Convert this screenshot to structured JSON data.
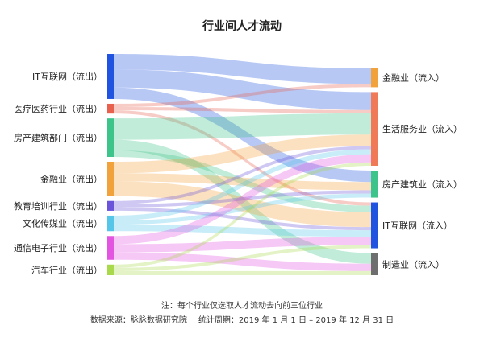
{
  "chart_data": {
    "type": "sankey",
    "title": "行业间人才流动",
    "sources": [
      {
        "name": "IT互联网（流出）",
        "color": "#1f53e0"
      },
      {
        "name": "医疗医药行业（流出）",
        "color": "#e8614d"
      },
      {
        "name": "房产建筑部门（流出）",
        "color": "#3dc48a"
      },
      {
        "name": "金融业（流出）",
        "color": "#f2a23a"
      },
      {
        "name": "教育培训行业（流出）",
        "color": "#6b54d9"
      },
      {
        "name": "文化传媒业（流出）",
        "color": "#55c6e8"
      },
      {
        "name": "通信电子行业（流出）",
        "color": "#e355e0"
      },
      {
        "name": "汽车行业（流出）",
        "color": "#a8d94a"
      }
    ],
    "targets": [
      {
        "name": "金融业（流入）",
        "color": "#f2a23a"
      },
      {
        "name": "生活服务业（流入）",
        "color": "#f07a57"
      },
      {
        "name": "房产建筑业（流入）",
        "color": "#3dc48a"
      },
      {
        "name": "IT互联网（流入）",
        "color": "#1f53e0"
      },
      {
        "name": "制造业（流入）",
        "color": "#6e6e6e"
      }
    ],
    "links": [
      {
        "source": 0,
        "target": 0,
        "value": 19
      },
      {
        "source": 0,
        "target": 1,
        "value": 22
      },
      {
        "source": 0,
        "target": 2,
        "value": 14
      },
      {
        "source": 1,
        "target": 0,
        "value": 4
      },
      {
        "source": 1,
        "target": 1,
        "value": 4
      },
      {
        "source": 1,
        "target": 3,
        "value": 4
      },
      {
        "source": 2,
        "target": 1,
        "value": 26
      },
      {
        "source": 2,
        "target": 4,
        "value": 13
      },
      {
        "source": 2,
        "target": 3,
        "value": 8
      },
      {
        "source": 3,
        "target": 1,
        "value": 14
      },
      {
        "source": 3,
        "target": 2,
        "value": 10
      },
      {
        "source": 3,
        "target": 3,
        "value": 18
      },
      {
        "source": 4,
        "target": 1,
        "value": 4
      },
      {
        "source": 4,
        "target": 2,
        "value": 4
      },
      {
        "source": 4,
        "target": 3,
        "value": 4
      },
      {
        "source": 5,
        "target": 1,
        "value": 6
      },
      {
        "source": 5,
        "target": 2,
        "value": 5
      },
      {
        "source": 5,
        "target": 3,
        "value": 8
      },
      {
        "source": 6,
        "target": 1,
        "value": 10
      },
      {
        "source": 6,
        "target": 3,
        "value": 10
      },
      {
        "source": 6,
        "target": 4,
        "value": 9
      },
      {
        "source": 7,
        "target": 1,
        "value": 4
      },
      {
        "source": 7,
        "target": 3,
        "value": 4
      },
      {
        "source": 7,
        "target": 4,
        "value": 5
      }
    ]
  },
  "footer": {
    "note": "注：每个行业仅选取人才流动去向前三位行业",
    "source": "数据来源：脉脉数据研究院",
    "period": "统计周期：2019 年 1 月 1 日 – 2019 年 12 月 31 日"
  }
}
